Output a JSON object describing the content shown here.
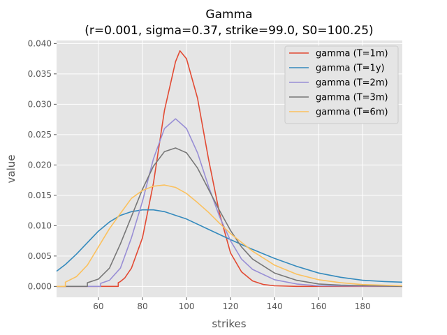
{
  "chart_data": {
    "type": "line",
    "title": "Gamma",
    "subtitle": "(r=0.001, sigma=0.37, strike=99.0, S0=100.25)",
    "xlabel": "strikes",
    "ylabel": "value",
    "xlim": [
      41,
      198
    ],
    "ylim": [
      -0.0018,
      0.0405
    ],
    "x_ticks": [
      60,
      80,
      100,
      120,
      140,
      160,
      180
    ],
    "y_ticks": [
      0.0,
      0.005,
      0.01,
      0.015,
      0.02,
      0.025,
      0.03,
      0.035,
      0.04
    ],
    "x_tick_labels": [
      "60",
      "80",
      "100",
      "120",
      "140",
      "160",
      "180"
    ],
    "y_tick_labels": [
      "0.000",
      "0.005",
      "0.010",
      "0.015",
      "0.020",
      "0.025",
      "0.030",
      "0.035",
      "0.040"
    ],
    "grid": true,
    "legend_position": "top-right",
    "series": [
      {
        "name": "gamma (T=1m)",
        "color": "#E24A33",
        "points": [
          [
            41,
            0
          ],
          [
            69,
            0
          ],
          [
            69,
            0.0006
          ],
          [
            70,
            0.0008
          ],
          [
            72,
            0.0014
          ],
          [
            75,
            0.003
          ],
          [
            80,
            0.008
          ],
          [
            85,
            0.017
          ],
          [
            90,
            0.029
          ],
          [
            95,
            0.037
          ],
          [
            97,
            0.0388
          ],
          [
            100,
            0.0375
          ],
          [
            105,
            0.031
          ],
          [
            110,
            0.021
          ],
          [
            115,
            0.012
          ],
          [
            120,
            0.0055
          ],
          [
            125,
            0.0024
          ],
          [
            130,
            0.0009
          ],
          [
            135,
            0.0003
          ],
          [
            140,
            0.0001
          ],
          [
            150,
            0
          ],
          [
            198,
            0
          ]
        ]
      },
      {
        "name": "gamma (T=1y)",
        "color": "#348ABD",
        "points": [
          [
            41,
            0.0025
          ],
          [
            45,
            0.0036
          ],
          [
            50,
            0.0053
          ],
          [
            55,
            0.0072
          ],
          [
            60,
            0.0091
          ],
          [
            65,
            0.0106
          ],
          [
            70,
            0.0117
          ],
          [
            75,
            0.0123
          ],
          [
            80,
            0.0126
          ],
          [
            85,
            0.0126
          ],
          [
            90,
            0.0123
          ],
          [
            100,
            0.0111
          ],
          [
            110,
            0.0094
          ],
          [
            120,
            0.0077
          ],
          [
            130,
            0.0061
          ],
          [
            140,
            0.0046
          ],
          [
            150,
            0.0033
          ],
          [
            160,
            0.0022
          ],
          [
            170,
            0.0015
          ],
          [
            180,
            0.001
          ],
          [
            190,
            0.0008
          ],
          [
            198,
            0.0007
          ]
        ]
      },
      {
        "name": "gamma (T=2m)",
        "color": "#988ED5",
        "points": [
          [
            41,
            0
          ],
          [
            61,
            0
          ],
          [
            61,
            0.0005
          ],
          [
            65,
            0.001
          ],
          [
            70,
            0.003
          ],
          [
            75,
            0.008
          ],
          [
            80,
            0.014
          ],
          [
            85,
            0.021
          ],
          [
            90,
            0.026
          ],
          [
            95,
            0.0276
          ],
          [
            100,
            0.026
          ],
          [
            105,
            0.022
          ],
          [
            110,
            0.0165
          ],
          [
            115,
            0.0115
          ],
          [
            120,
            0.0075
          ],
          [
            125,
            0.0045
          ],
          [
            130,
            0.0028
          ],
          [
            140,
            0.0011
          ],
          [
            150,
            0.0004
          ],
          [
            160,
            0.0001
          ],
          [
            198,
            0
          ]
        ]
      },
      {
        "name": "gamma (T=3m)",
        "color": "#777777",
        "points": [
          [
            41,
            0
          ],
          [
            55,
            0
          ],
          [
            55,
            0.0006
          ],
          [
            60,
            0.0012
          ],
          [
            65,
            0.003
          ],
          [
            70,
            0.007
          ],
          [
            75,
            0.0115
          ],
          [
            80,
            0.016
          ],
          [
            85,
            0.0198
          ],
          [
            90,
            0.0222
          ],
          [
            95,
            0.0228
          ],
          [
            100,
            0.022
          ],
          [
            105,
            0.0195
          ],
          [
            110,
            0.016
          ],
          [
            115,
            0.0125
          ],
          [
            120,
            0.0092
          ],
          [
            125,
            0.0065
          ],
          [
            130,
            0.0045
          ],
          [
            140,
            0.0022
          ],
          [
            150,
            0.001
          ],
          [
            160,
            0.0004
          ],
          [
            170,
            0.0002
          ],
          [
            198,
            0
          ]
        ]
      },
      {
        "name": "gamma (T=6m)",
        "color": "#FBC15E",
        "points": [
          [
            41,
            0
          ],
          [
            45,
            0
          ],
          [
            45,
            0.0007
          ],
          [
            50,
            0.0016
          ],
          [
            55,
            0.0035
          ],
          [
            60,
            0.0065
          ],
          [
            65,
            0.0095
          ],
          [
            70,
            0.012
          ],
          [
            75,
            0.0145
          ],
          [
            80,
            0.0158
          ],
          [
            85,
            0.0165
          ],
          [
            90,
            0.0167
          ],
          [
            95,
            0.0163
          ],
          [
            100,
            0.0153
          ],
          [
            105,
            0.0138
          ],
          [
            110,
            0.0122
          ],
          [
            115,
            0.0104
          ],
          [
            120,
            0.0087
          ],
          [
            130,
            0.0058
          ],
          [
            140,
            0.0035
          ],
          [
            150,
            0.002
          ],
          [
            160,
            0.0011
          ],
          [
            170,
            0.0006
          ],
          [
            180,
            0.0003
          ],
          [
            198,
            0.0001
          ]
        ]
      }
    ]
  }
}
